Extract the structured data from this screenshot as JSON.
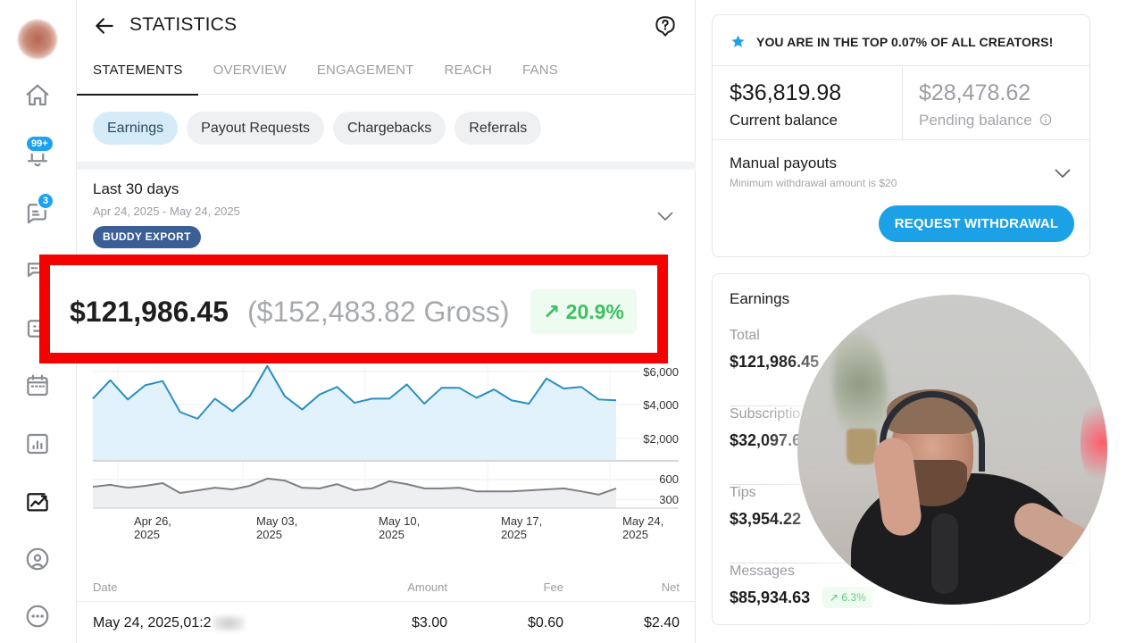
{
  "sidebar": {
    "items": [
      {
        "name": "home",
        "icon": "home-icon"
      },
      {
        "name": "notifications",
        "icon": "bell-icon",
        "badge": "99+"
      },
      {
        "name": "messages",
        "icon": "chat-icon",
        "badge": "3"
      },
      {
        "name": "collections",
        "icon": "chat-bubbles-icon"
      },
      {
        "name": "vault",
        "icon": "vault-icon"
      },
      {
        "name": "queue",
        "icon": "calendar-icon"
      },
      {
        "name": "statistics",
        "icon": "bar-chart-icon"
      },
      {
        "name": "analytics",
        "icon": "trending-chart-icon",
        "active": true
      },
      {
        "name": "profile",
        "icon": "user-circle-icon"
      },
      {
        "name": "more",
        "icon": "more-icon"
      }
    ]
  },
  "header": {
    "title": "STATISTICS",
    "back_icon": "arrow-left-icon",
    "help_icon": "help-icon"
  },
  "tabs": [
    {
      "label": "STATEMENTS",
      "active": true
    },
    {
      "label": "OVERVIEW"
    },
    {
      "label": "ENGAGEMENT"
    },
    {
      "label": "REACH"
    },
    {
      "label": "FANS"
    }
  ],
  "chips": [
    {
      "label": "Earnings",
      "active": true
    },
    {
      "label": "Payout Requests"
    },
    {
      "label": "Chargebacks"
    },
    {
      "label": "Referrals"
    }
  ],
  "period": {
    "title": "Last 30 days",
    "range": "Apr 24, 2025 - May 24, 2025",
    "export_label": "BUDDY EXPORT"
  },
  "summary": {
    "net": "$121,986.45",
    "gross": "($152,483.82 Gross)",
    "change": "20.9%",
    "change_icon": "arrow-up-right-icon"
  },
  "chart_data": {
    "type": "area",
    "title": "",
    "xlabel": "",
    "ylabel": "",
    "x_ticks": [
      "Apr 26,\n2025",
      "May 03,\n2025",
      "May 10,\n2025",
      "May 17,\n2025",
      "May 24,\n2025"
    ],
    "x": [
      "Apr 24",
      "Apr 25",
      "Apr 26",
      "Apr 27",
      "Apr 28",
      "Apr 29",
      "Apr 30",
      "May 01",
      "May 02",
      "May 03",
      "May 04",
      "May 05",
      "May 06",
      "May 07",
      "May 08",
      "May 09",
      "May 10",
      "May 11",
      "May 12",
      "May 13",
      "May 14",
      "May 15",
      "May 16",
      "May 17",
      "May 18",
      "May 19",
      "May 20",
      "May 21",
      "May 22",
      "May 23",
      "May 24"
    ],
    "series": [
      {
        "name": "Earnings",
        "color": "#2a8fc0",
        "fill": "#e1f2fc",
        "y_ticks": [
          "$6,000",
          "$4,000",
          "$2,000"
        ],
        "ylim": [
          0,
          6500
        ],
        "values": [
          4300,
          5400,
          4250,
          5100,
          5350,
          3500,
          3100,
          4300,
          3550,
          4450,
          6250,
          4450,
          3650,
          4550,
          5000,
          4050,
          4300,
          4300,
          5150,
          4000,
          4950,
          4950,
          4350,
          4850,
          4200,
          4000,
          5500,
          4900,
          5000,
          4250,
          4200
        ]
      },
      {
        "name": "Transactions",
        "color": "#7d7f83",
        "fill": "#eeeff1",
        "y_ticks": [
          "600",
          "300"
        ],
        "ylim": [
          0,
          650
        ],
        "values": [
          490,
          520,
          475,
          505,
          545,
          395,
          435,
          475,
          450,
          505,
          615,
          585,
          475,
          465,
          530,
          435,
          465,
          575,
          530,
          465,
          465,
          475,
          420,
          420,
          420,
          435,
          450,
          465,
          420,
          370,
          465
        ]
      }
    ],
    "grid": true
  },
  "table": {
    "columns": [
      "Date",
      "Amount",
      "Fee",
      "Net"
    ],
    "rows": [
      {
        "date": "May 24, 2025,01:2",
        "amount": "$3.00",
        "fee": "$0.60",
        "net": "$2.40"
      }
    ]
  },
  "rank": {
    "icon": "star-icon",
    "text": "YOU ARE IN THE TOP 0.07% OF ALL CREATORS!",
    "color": "#1da1e6"
  },
  "balances": {
    "current_amount": "$36,819.98",
    "current_label": "Current balance",
    "pending_amount": "$28,478.62",
    "pending_label": "Pending balance"
  },
  "payouts": {
    "title": "Manual payouts",
    "subtitle": "Minimum withdrawal amount is $20",
    "button": "REQUEST WITHDRAWAL"
  },
  "earnings": {
    "title": "Earnings",
    "rows": [
      {
        "label": "Total",
        "value": "$121,986.45"
      },
      {
        "label": "Subscriptio",
        "value": "$32,097.6"
      },
      {
        "label": "Tips",
        "value": "$3,954.22"
      },
      {
        "label": "Messages",
        "value": "$85,934.63",
        "change": "6.3%"
      }
    ]
  },
  "colors": {
    "accent": "#1da1e6",
    "highlight": "#f40202",
    "positive": "#3cc163",
    "export": "#3b5f95"
  }
}
